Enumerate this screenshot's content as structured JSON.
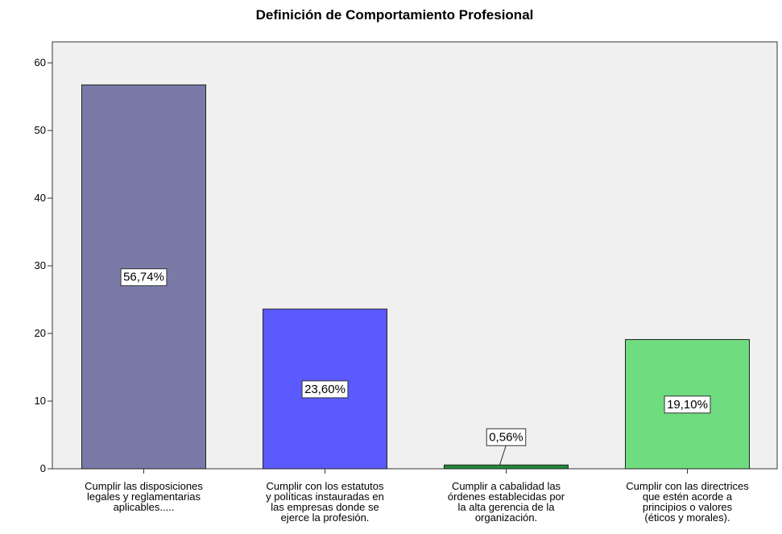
{
  "chart_data": {
    "type": "bar",
    "title": "Definición de Comportamiento Profesional",
    "categories": [
      "Cumplir las disposiciones\nlegales y reglamentarias\naplicables.....",
      "Cumplir con los estatutos\ny políticas instauradas en\nlas empresas donde se\nejerce la profesión.",
      "Cumplir a cabalidad las\nórdenes establecidas por\nla alta gerencia de la\norganización.",
      "Cumplir con las directrices\nque estén acorde a\nprincipios o valores\n(éticos y morales)."
    ],
    "values": [
      56.74,
      23.6,
      0.56,
      19.1
    ],
    "value_labels": [
      "56,74%",
      "23,60%",
      "0,56%",
      "19,10%"
    ],
    "colors": [
      "#7a7aa8",
      "#5a5aff",
      "#228b3a",
      "#6fdc80"
    ],
    "ylim": [
      0,
      63.1
    ],
    "yticks": [
      0,
      10,
      20,
      30,
      40,
      50,
      60
    ],
    "grid": false
  }
}
